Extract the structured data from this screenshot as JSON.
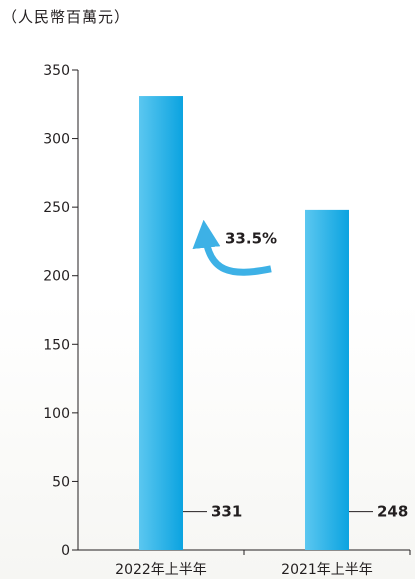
{
  "unit_label": "（人民幣百萬元）",
  "colors": {
    "bar_light": "#5bc7f0",
    "bar_dark": "#0ba3e0",
    "arrow": "#3db1e6",
    "axis": "#231f20"
  },
  "icons": {
    "growth_arrow": "curved-up-left-arrow-icon"
  },
  "chart_data": {
    "type": "bar",
    "title": "",
    "xlabel": "",
    "ylabel": "（人民幣百萬元）",
    "categories": [
      "2022年上半年",
      "2021年上半年"
    ],
    "values": [
      331,
      248
    ],
    "value_labels": [
      "331",
      "248"
    ],
    "ylim": [
      0,
      350
    ],
    "yticks": [
      0,
      50,
      100,
      150,
      200,
      250,
      300,
      350
    ],
    "grid": false,
    "legend": "none",
    "annotation": {
      "text": "33.5%",
      "meaning": "growth from 2021年上半年 to 2022年上半年"
    }
  }
}
